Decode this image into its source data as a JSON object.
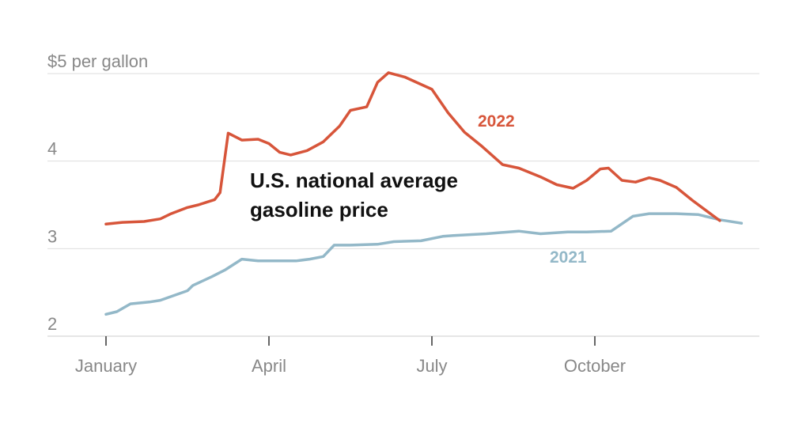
{
  "chart_data": {
    "type": "line",
    "title_lines": [
      "U.S. national average",
      "gasoline price"
    ],
    "y_unit_label": "$5 per gallon",
    "y_ticks": [
      {
        "value": 2,
        "label": "2"
      },
      {
        "value": 3,
        "label": "3"
      },
      {
        "value": 4,
        "label": "4"
      },
      {
        "value": 5,
        "label": "$5 per gallon"
      }
    ],
    "ylim": [
      2,
      5
    ],
    "x_ticks": [
      {
        "value": 0,
        "label": "January"
      },
      {
        "value": 3,
        "label": "April"
      },
      {
        "value": 6,
        "label": "July"
      },
      {
        "value": 9,
        "label": "October"
      }
    ],
    "xlim": [
      0,
      12
    ],
    "grid": true,
    "series": [
      {
        "name": "2021",
        "color": "#93b8c8",
        "x": [
          0,
          0.2,
          0.45,
          0.8,
          1.0,
          1.5,
          1.6,
          1.95,
          2.2,
          2.5,
          2.8,
          3.0,
          3.5,
          3.75,
          4.0,
          4.2,
          4.5,
          5.0,
          5.3,
          5.8,
          6.2,
          6.4,
          7.0,
          7.6,
          8.0,
          8.5,
          8.85,
          9.3,
          9.7,
          10.0,
          10.5,
          10.9,
          11.3,
          11.7
        ],
        "values": [
          2.25,
          2.28,
          2.37,
          2.39,
          2.41,
          2.52,
          2.58,
          2.68,
          2.76,
          2.88,
          2.86,
          2.86,
          2.86,
          2.88,
          2.91,
          3.04,
          3.04,
          3.05,
          3.08,
          3.09,
          3.14,
          3.15,
          3.17,
          3.2,
          3.17,
          3.19,
          3.19,
          3.2,
          3.37,
          3.4,
          3.4,
          3.39,
          3.33,
          3.29
        ]
      },
      {
        "name": "2022",
        "color": "#d7553a",
        "x": [
          0,
          0.3,
          0.7,
          1.0,
          1.2,
          1.5,
          1.7,
          1.85,
          2.0,
          2.1,
          2.25,
          2.5,
          2.8,
          3.0,
          3.2,
          3.4,
          3.7,
          4.0,
          4.3,
          4.5,
          4.8,
          5.0,
          5.2,
          5.5,
          6.0,
          6.3,
          6.6,
          6.9,
          7.3,
          7.6,
          8.0,
          8.3,
          8.6,
          8.85,
          9.1,
          9.25,
          9.5,
          9.75,
          10.0,
          10.2,
          10.5,
          10.8,
          11.3
        ],
        "values": [
          3.28,
          3.3,
          3.31,
          3.34,
          3.4,
          3.47,
          3.5,
          3.53,
          3.56,
          3.64,
          4.32,
          4.24,
          4.25,
          4.2,
          4.1,
          4.07,
          4.12,
          4.22,
          4.4,
          4.58,
          4.62,
          4.9,
          5.01,
          4.96,
          4.82,
          4.55,
          4.33,
          4.18,
          3.96,
          3.92,
          3.82,
          3.73,
          3.69,
          3.78,
          3.91,
          3.92,
          3.78,
          3.76,
          3.81,
          3.78,
          3.7,
          3.55,
          3.32
        ]
      }
    ]
  }
}
